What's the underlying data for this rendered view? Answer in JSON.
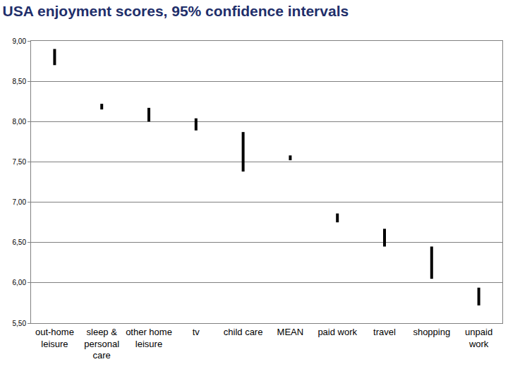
{
  "chart_data": {
    "type": "interval",
    "title": "USA enjoyment scores, 95% confidence intervals",
    "categories": [
      "out-home leisure",
      "sleep & personal care",
      "other home leisure",
      "tv",
      "child care",
      "MEAN",
      "paid work",
      "travel",
      "shopping",
      "unpaid work"
    ],
    "lower": [
      8.7,
      8.15,
      8.0,
      7.89,
      7.38,
      7.52,
      6.75,
      6.45,
      6.05,
      5.72
    ],
    "upper": [
      8.9,
      8.22,
      8.17,
      8.04,
      7.87,
      7.58,
      6.86,
      6.67,
      6.45,
      5.94
    ],
    "color": "#000000",
    "ylim": [
      5.5,
      9
    ],
    "yticks": [
      {
        "value": 5.5,
        "label": "5,50"
      },
      {
        "value": 6,
        "label": "6,00"
      },
      {
        "value": 6.5,
        "label": "6,50"
      },
      {
        "value": 7,
        "label": "7,00"
      },
      {
        "value": 7.5,
        "label": "7,50"
      },
      {
        "value": 8,
        "label": "8,00"
      },
      {
        "value": 8.5,
        "label": "8,50"
      },
      {
        "value": 9,
        "label": "9,00"
      }
    ],
    "grid": true
  }
}
